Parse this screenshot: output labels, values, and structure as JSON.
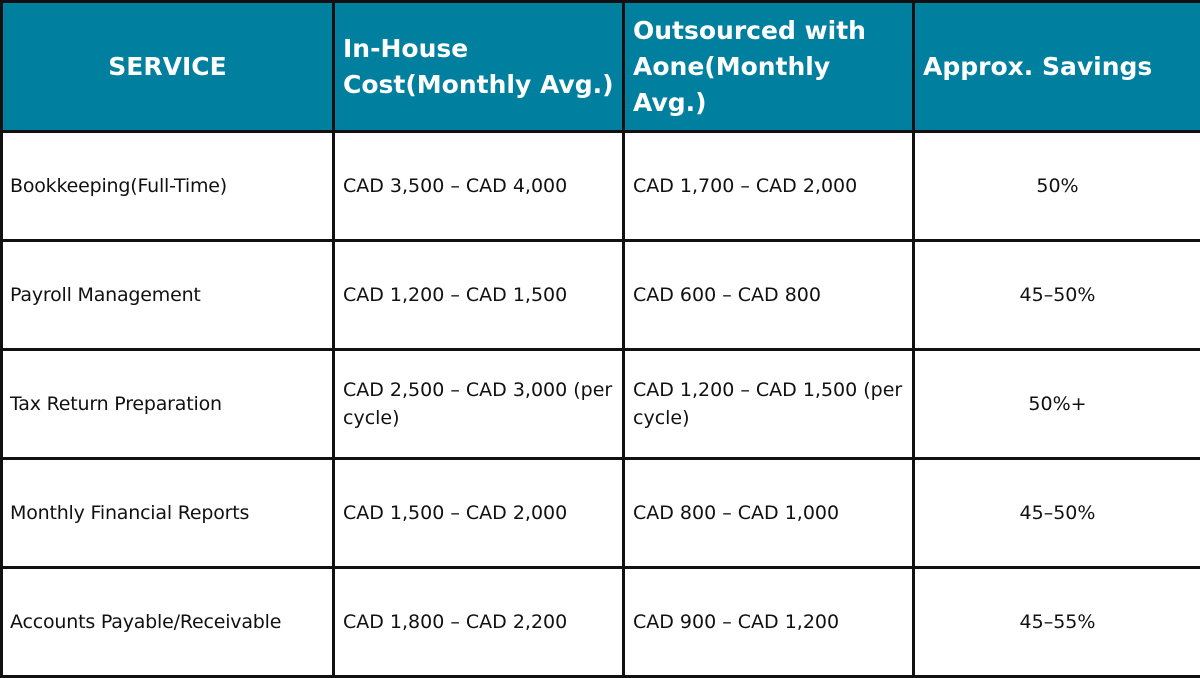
{
  "table": {
    "headers": {
      "service": "SERVICE",
      "in_house": "In-House Cost(Monthly Avg.)",
      "outsourced": "Outsourced with Aone(Monthly Avg.)",
      "savings": "Approx. Savings"
    },
    "rows": [
      {
        "service": "Bookkeeping(Full-Time)",
        "in_house": "CAD 3,500 – CAD 4,000",
        "outsourced": "CAD 1,700 – CAD 2,000",
        "savings": "50%"
      },
      {
        "service": "Payroll Management",
        "in_house": "CAD 1,200 – CAD 1,500",
        "outsourced": "CAD 600 – CAD 800",
        "savings": "45–50%"
      },
      {
        "service": "Tax Return Preparation",
        "in_house": "CAD 2,500 – CAD 3,000 (per cycle)",
        "outsourced": "CAD 1,200 – CAD 1,500 (per cycle)",
        "savings": "50%+"
      },
      {
        "service": "Monthly Financial Reports",
        "in_house": "CAD 1,500 – CAD 2,000",
        "outsourced": "CAD 800 – CAD 1,000",
        "savings": "45–50%"
      },
      {
        "service": "Accounts Payable/Receivable",
        "in_house": "CAD 1,800 – CAD 2,200",
        "outsourced": "CAD 900 – CAD 1,200",
        "savings": "45–55%"
      }
    ]
  },
  "colors": {
    "header_background": "#007f9f",
    "header_text": "#ffffff",
    "border": "#111111",
    "body_text": "#111111"
  }
}
